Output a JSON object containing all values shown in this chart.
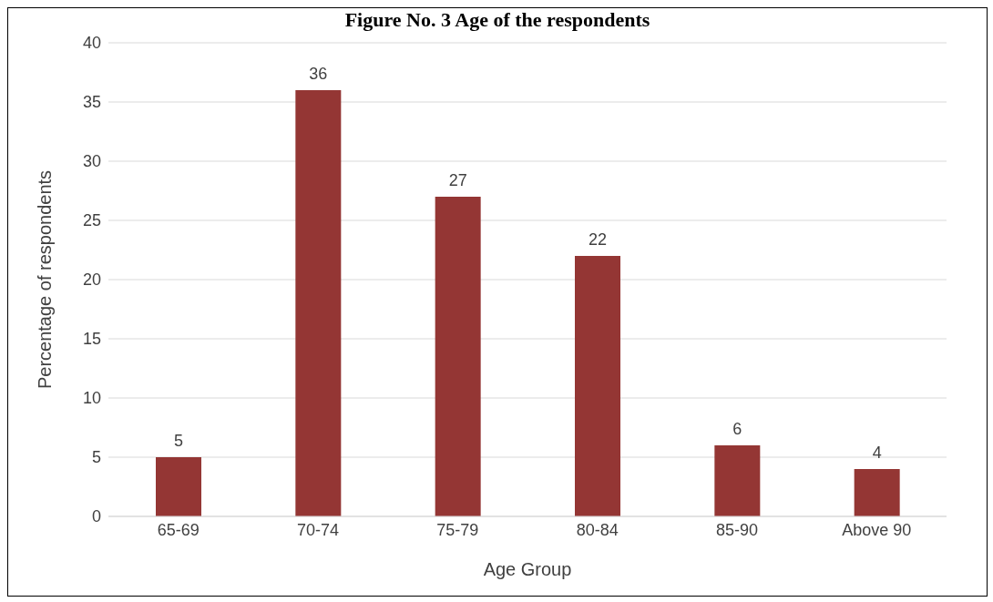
{
  "chart_data": {
    "type": "bar",
    "title": "Figure No. 3 Age of the respondents",
    "xlabel": "Age Group",
    "ylabel": "Percentage of respondents",
    "categories": [
      "65-69",
      "70-74",
      "75-79",
      "80-84",
      "85-90",
      "Above 90"
    ],
    "values": [
      5,
      36,
      27,
      22,
      6,
      4
    ],
    "color": "#943634",
    "ylim": [
      0,
      40
    ],
    "yticks": [
      0,
      5,
      10,
      15,
      20,
      25,
      30,
      35,
      40
    ],
    "grid": "y",
    "data_labels": true
  }
}
